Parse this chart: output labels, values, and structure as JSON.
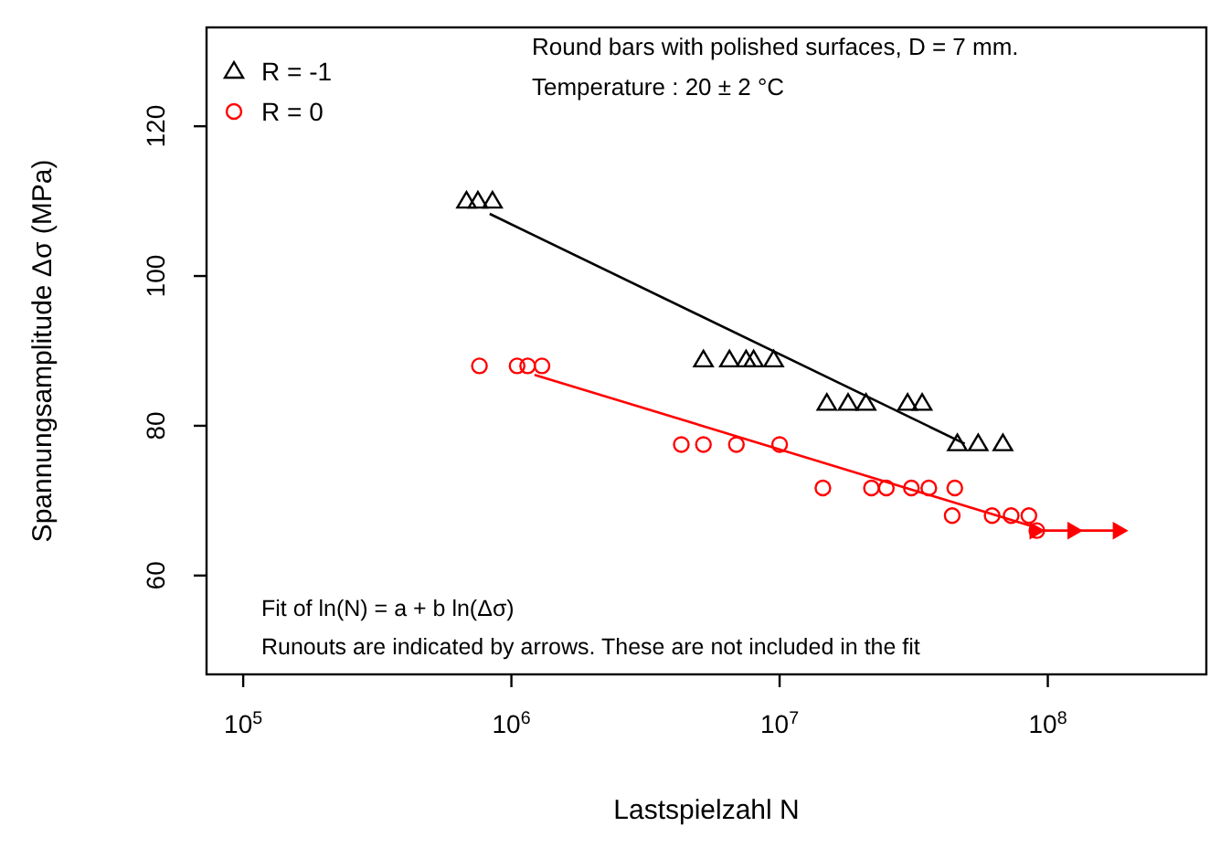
{
  "chart_data": {
    "type": "scatter",
    "xlabel": "Lastspielzahl N",
    "ylabel": "Spannungsamplitude Δσ (MPa)",
    "log": "x",
    "xlim": [
      73000,
      390000000
    ],
    "ylim": [
      46.8,
      133.2
    ],
    "xticks": [
      {
        "value": 100000,
        "label": "10$^{5}$"
      },
      {
        "value": 1000000,
        "label": "10$^{6}$"
      },
      {
        "value": 10000000,
        "label": "10$^{7}$"
      },
      {
        "value": 100000000,
        "label": "10$^{8}$"
      }
    ],
    "yticks": [
      60,
      80,
      100,
      120
    ],
    "grid": false,
    "legend": "top left",
    "series": [
      {
        "name": "R = -1",
        "marker": "triangle",
        "color": "#000000",
        "x": [
          680000,
          750000,
          850000,
          5200000,
          6500000,
          7500000,
          8000000,
          9500000,
          15000000,
          18000000,
          21000000,
          30000000,
          34000000,
          46000000,
          55000000,
          68000000
        ],
        "values": [
          110,
          110,
          110,
          88.8,
          88.8,
          88.8,
          88.8,
          88.8,
          83,
          83,
          83,
          83,
          83,
          77.6,
          77.6,
          77.6
        ]
      },
      {
        "name": "R = 0",
        "marker": "circle",
        "color": "#ff0000",
        "x": [
          760000,
          1050000,
          1150000,
          1300000,
          4300000,
          5200000,
          6900000,
          10000000,
          14500000,
          22000000,
          25000000,
          31000000,
          36000000,
          45000000,
          44000000,
          62000000,
          73000000,
          85000000,
          91000000
        ],
        "values": [
          88,
          88,
          88,
          88,
          77.5,
          77.5,
          77.5,
          77.5,
          71.7,
          71.7,
          71.7,
          71.7,
          71.7,
          71.7,
          68,
          68,
          68,
          68,
          66
        ]
      },
      {
        "type": "line",
        "marker": "none",
        "color": "#000000",
        "x": [
          830000,
          49000000
        ],
        "values": [
          108.3,
          77.6
        ]
      },
      {
        "type": "line",
        "marker": "none",
        "color": "#ff0000",
        "x": [
          1220000,
          87000000
        ],
        "values": [
          86.8,
          66.6
        ]
      },
      {
        "type": "line",
        "marker": "triangle",
        "color": "#ff0000",
        "x": [
          91000000,
          126000000,
          186000000
        ],
        "values": [
          66,
          66,
          66
        ]
      }
    ],
    "annotations": [
      "Round bars with polished surfaces, D = 7 mm.",
      "Temperature : 20 ± 2 °C",
      "Fit of ln(N) = a + b ln(Δσ)",
      "Runouts are indicated by arrows. These are not included in the fit"
    ]
  }
}
